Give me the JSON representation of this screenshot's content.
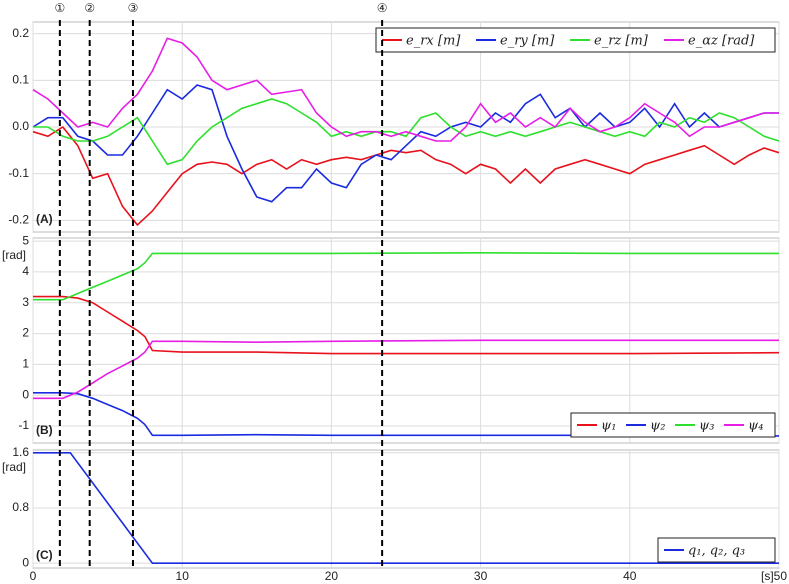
{
  "chart_data": [
    {
      "type": "line",
      "panel_label": "(A)",
      "legend": "upper right",
      "annotations": [
        {
          "label": "①",
          "x": 1.8
        },
        {
          "label": "②",
          "x": 3.8
        },
        {
          "label": "③",
          "x": 6.7
        },
        {
          "label": "④",
          "x": 23.4
        }
      ],
      "ylim": [
        -0.225,
        0.225
      ],
      "yticks": [
        0.2,
        0.1,
        {
          "value": 0,
          "label": "0.0"
        },
        -0.1,
        -0.2
      ],
      "grid": true,
      "x": [
        0,
        1,
        2,
        3,
        4,
        5,
        6,
        7,
        8,
        9,
        10,
        11,
        12,
        13,
        14,
        15,
        16,
        17,
        18,
        19,
        20,
        21,
        22,
        23,
        24,
        25,
        26,
        27,
        28,
        29,
        30,
        31,
        32,
        33,
        34,
        35,
        36,
        37,
        38,
        39,
        40,
        41,
        42,
        43,
        44,
        45,
        46,
        47,
        48,
        49,
        50
      ],
      "series": [
        {
          "name": "e_rx [m]",
          "color": "#e8121c",
          "values": [
            -0.01,
            -0.02,
            0.0,
            -0.04,
            -0.11,
            -0.1,
            -0.17,
            -0.21,
            -0.18,
            -0.14,
            -0.1,
            -0.08,
            -0.075,
            -0.08,
            -0.1,
            -0.08,
            -0.07,
            -0.09,
            -0.07,
            -0.08,
            -0.07,
            -0.065,
            -0.07,
            -0.06,
            -0.05,
            -0.055,
            -0.05,
            -0.07,
            -0.08,
            -0.1,
            -0.08,
            -0.09,
            -0.12,
            -0.09,
            -0.12,
            -0.09,
            -0.08,
            -0.07,
            -0.08,
            -0.09,
            -0.1,
            -0.08,
            -0.07,
            -0.06,
            -0.05,
            -0.04,
            -0.06,
            -0.08,
            -0.06,
            -0.045,
            -0.055
          ]
        },
        {
          "name": "e_ry [m]",
          "color": "#1a2be0",
          "values": [
            0.0,
            0.02,
            0.02,
            -0.02,
            -0.03,
            -0.06,
            -0.06,
            -0.02,
            0.03,
            0.08,
            0.06,
            0.09,
            0.08,
            -0.02,
            -0.09,
            -0.15,
            -0.16,
            -0.13,
            -0.13,
            -0.09,
            -0.12,
            -0.13,
            -0.08,
            -0.06,
            -0.07,
            -0.04,
            -0.01,
            -0.02,
            0.0,
            0.01,
            0.0,
            0.03,
            0.01,
            0.05,
            0.07,
            0.02,
            0.04,
            0.0,
            0.03,
            0.0,
            0.01,
            0.04,
            0.0,
            0.05,
            0.0,
            0.03,
            0.0,
            0.01,
            0.02,
            0.03,
            0.03
          ]
        },
        {
          "name": "e_rz [m]",
          "color": "#2ee02e",
          "values": [
            0.0,
            0.0,
            -0.02,
            -0.03,
            -0.03,
            -0.02,
            0.0,
            0.02,
            -0.03,
            -0.08,
            -0.07,
            -0.03,
            0.0,
            0.02,
            0.04,
            0.05,
            0.06,
            0.05,
            0.03,
            0.01,
            -0.02,
            -0.01,
            -0.02,
            -0.01,
            -0.01,
            -0.02,
            0.02,
            0.03,
            0.0,
            -0.02,
            -0.01,
            -0.02,
            -0.01,
            -0.02,
            -0.01,
            0.0,
            0.01,
            0.0,
            -0.01,
            -0.02,
            -0.01,
            -0.02,
            0.01,
            0.0,
            0.02,
            0.01,
            0.03,
            0.02,
            0.0,
            -0.02,
            -0.03
          ]
        },
        {
          "name": "e_αz [rad]",
          "color": "#e61ee6",
          "values": [
            0.08,
            0.06,
            0.03,
            0.0,
            0.01,
            0.0,
            0.04,
            0.07,
            0.12,
            0.19,
            0.18,
            0.15,
            0.1,
            0.08,
            0.09,
            0.1,
            0.07,
            0.075,
            0.08,
            0.03,
            0.0,
            -0.02,
            -0.01,
            -0.01,
            -0.02,
            -0.01,
            -0.02,
            -0.03,
            -0.03,
            0.0,
            0.05,
            0.01,
            0.03,
            0.0,
            0.02,
            0.0,
            0.04,
            0.01,
            -0.01,
            0.0,
            0.02,
            0.05,
            0.03,
            0.01,
            -0.02,
            0.0,
            0.0,
            0.01,
            0.02,
            0.03,
            0.03
          ]
        }
      ]
    },
    {
      "type": "line",
      "panel_label": "(B)",
      "y_label": "[rad]",
      "legend": "lower right",
      "ylim": [
        -1.55,
        5.1
      ],
      "yticks": [
        5,
        4,
        3,
        2,
        1,
        0,
        -1
      ],
      "grid": true,
      "x": [
        0,
        2,
        3,
        4,
        5,
        6,
        7,
        7.5,
        8,
        10,
        15,
        20,
        30,
        40,
        50
      ],
      "series": [
        {
          "name": "ψ₁",
          "color": "#e8121c",
          "values": [
            3.2,
            3.2,
            3.15,
            3.0,
            2.7,
            2.4,
            2.1,
            1.9,
            1.45,
            1.4,
            1.4,
            1.35,
            1.35,
            1.35,
            1.38
          ]
        },
        {
          "name": "ψ₂",
          "color": "#1a2be0",
          "values": [
            0.08,
            0.08,
            0.05,
            -0.1,
            -0.3,
            -0.5,
            -0.75,
            -0.95,
            -1.3,
            -1.3,
            -1.28,
            -1.3,
            -1.3,
            -1.3,
            -1.32
          ]
        },
        {
          "name": "ψ₃",
          "color": "#2ee02e",
          "values": [
            3.1,
            3.1,
            3.3,
            3.5,
            3.7,
            3.9,
            4.1,
            4.3,
            4.6,
            4.6,
            4.6,
            4.6,
            4.62,
            4.6,
            4.6
          ]
        },
        {
          "name": "ψ₄",
          "color": "#e61ee6",
          "values": [
            -0.1,
            -0.1,
            0.1,
            0.4,
            0.7,
            0.95,
            1.2,
            1.4,
            1.75,
            1.75,
            1.72,
            1.75,
            1.78,
            1.78,
            1.78
          ]
        }
      ]
    },
    {
      "type": "line",
      "panel_label": "(C)",
      "y_label": "[rad]",
      "legend": "lower right",
      "ylim": [
        -0.07,
        1.64
      ],
      "yticks": [
        1.6,
        0.8,
        0
      ],
      "grid": true,
      "xlim": [
        0,
        50
      ],
      "xticks": [
        0,
        10,
        20,
        30,
        40,
        {
          "value": 50,
          "label": "[s]50"
        }
      ],
      "x": [
        0,
        2.5,
        8,
        50
      ],
      "series": [
        {
          "name": "q₁, q₂, q₃",
          "color": "#1a2be0",
          "values": [
            1.6,
            1.6,
            0,
            0
          ]
        }
      ]
    }
  ]
}
